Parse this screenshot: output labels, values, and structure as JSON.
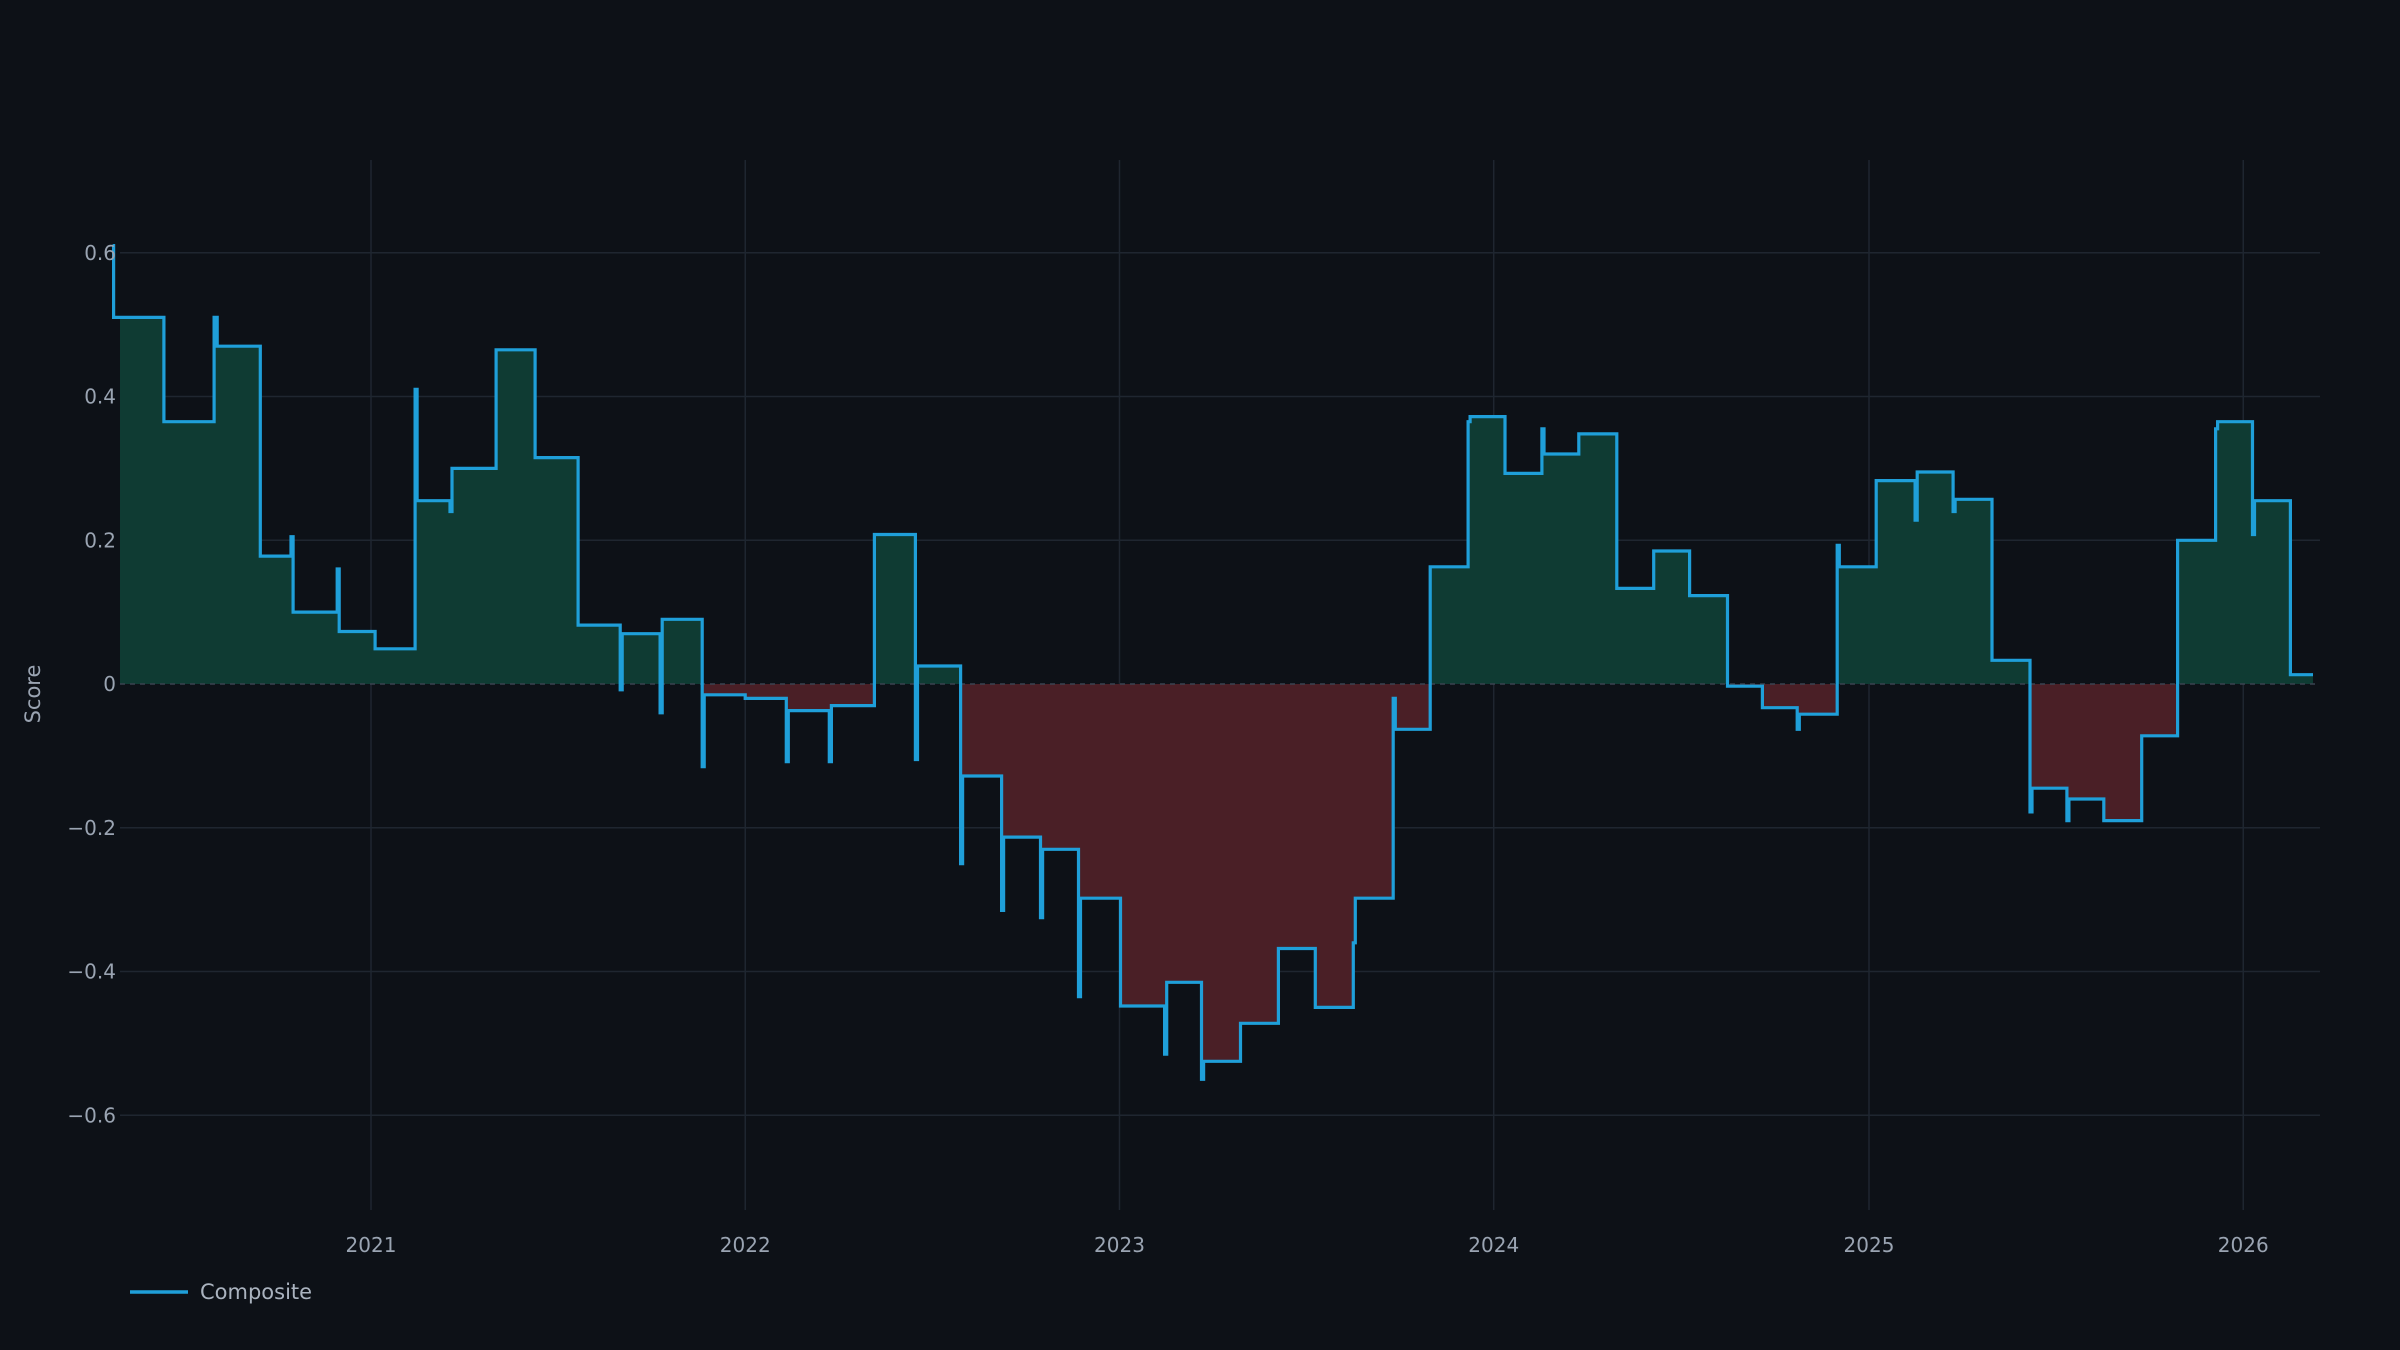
{
  "chart_data": {
    "type": "line",
    "ylabel": "Score",
    "xlabel": "",
    "ylim": [
      -0.73,
      0.73
    ],
    "xlim": [
      "2020-04-24",
      "2026-03-10"
    ],
    "x_ticks": [
      {
        "date": "2021-01-01",
        "label": "2021"
      },
      {
        "date": "2022-01-01",
        "label": "2022"
      },
      {
        "date": "2023-01-01",
        "label": "2023"
      },
      {
        "date": "2024-01-01",
        "label": "2024"
      },
      {
        "date": "2025-01-01",
        "label": "2025"
      },
      {
        "date": "2026-01-01",
        "label": "2026"
      }
    ],
    "y_ticks": [
      {
        "value": 0.6,
        "label": "0.6"
      },
      {
        "value": 0.4,
        "label": "0.4"
      },
      {
        "value": 0.2,
        "label": "0.2"
      },
      {
        "value": 0,
        "label": "0"
      },
      {
        "value": -0.2,
        "label": "−0.2"
      },
      {
        "value": -0.4,
        "label": "−0.4"
      },
      {
        "value": -0.6,
        "label": "−0.6"
      }
    ],
    "grid": true,
    "zero_line": "dashed",
    "fill": {
      "positive": "#0f3b33",
      "negative": "#4a1f26"
    },
    "legend": {
      "position": "bottom-left"
    },
    "series": [
      {
        "name": "Composite",
        "color": "#1f9fd9",
        "step": true,
        "points": [
          [
            "2020-04-24",
            0.61
          ],
          [
            "2020-04-25",
            0.51
          ],
          [
            "2020-06-12",
            0.51
          ],
          [
            "2020-06-13",
            0.365
          ],
          [
            "2020-07-30",
            0.365
          ],
          [
            "2020-08-01",
            0.51
          ],
          [
            "2020-08-04",
            0.47
          ],
          [
            "2020-09-14",
            0.47
          ],
          [
            "2020-09-15",
            0.178
          ],
          [
            "2020-10-13",
            0.178
          ],
          [
            "2020-10-15",
            0.205
          ],
          [
            "2020-10-17",
            0.1
          ],
          [
            "2020-11-27",
            0.1
          ],
          [
            "2020-11-29",
            0.16
          ],
          [
            "2020-12-01",
            0.073
          ],
          [
            "2020-12-20",
            0.073
          ],
          [
            "2020-12-21",
            0.073
          ],
          [
            "2021-01-04",
            0.073
          ],
          [
            "2021-01-05",
            0.049
          ],
          [
            "2021-02-11",
            0.049
          ],
          [
            "2021-02-13",
            0.41
          ],
          [
            "2021-02-15",
            0.255
          ],
          [
            "2021-03-17",
            0.255
          ],
          [
            "2021-03-19",
            0.24
          ],
          [
            "2021-03-21",
            0.3
          ],
          [
            "2021-04-30",
            0.3
          ],
          [
            "2021-05-03",
            0.465
          ],
          [
            "2021-06-08",
            0.465
          ],
          [
            "2021-06-10",
            0.315
          ],
          [
            "2021-07-20",
            0.315
          ],
          [
            "2021-07-22",
            0.082
          ],
          [
            "2021-08-30",
            0.082
          ],
          [
            "2021-09-01",
            -0.008
          ],
          [
            "2021-09-03",
            0.07
          ],
          [
            "2021-10-08",
            0.07
          ],
          [
            "2021-10-10",
            -0.04
          ],
          [
            "2021-10-12",
            0.09
          ],
          [
            "2021-11-19",
            0.09
          ],
          [
            "2021-11-20",
            -0.115
          ],
          [
            "2021-11-22",
            -0.015
          ],
          [
            "2021-12-30",
            -0.015
          ],
          [
            "2022-01-01",
            -0.02
          ],
          [
            "2022-02-08",
            -0.02
          ],
          [
            "2022-02-10",
            -0.108
          ],
          [
            "2022-02-12",
            -0.037
          ],
          [
            "2022-03-22",
            -0.037
          ],
          [
            "2022-03-24",
            -0.108
          ],
          [
            "2022-03-26",
            -0.03
          ],
          [
            "2022-05-05",
            -0.03
          ],
          [
            "2022-05-07",
            0.208
          ],
          [
            "2022-06-14",
            0.208
          ],
          [
            "2022-06-16",
            -0.105
          ],
          [
            "2022-06-18",
            0.025
          ],
          [
            "2022-07-28",
            0.025
          ],
          [
            "2022-07-30",
            -0.25
          ],
          [
            "2022-08-01",
            -0.128
          ],
          [
            "2022-09-06",
            -0.128
          ],
          [
            "2022-09-08",
            -0.315
          ],
          [
            "2022-09-10",
            -0.213
          ],
          [
            "2022-10-14",
            -0.213
          ],
          [
            "2022-10-16",
            -0.325
          ],
          [
            "2022-10-18",
            -0.23
          ],
          [
            "2022-11-20",
            -0.23
          ],
          [
            "2022-11-22",
            -0.435
          ],
          [
            "2022-11-24",
            -0.298
          ],
          [
            "2022-12-31",
            -0.298
          ],
          [
            "2023-01-02",
            -0.448
          ],
          [
            "2023-02-12",
            -0.448
          ],
          [
            "2023-02-14",
            -0.515
          ],
          [
            "2023-02-16",
            -0.415
          ],
          [
            "2023-03-20",
            -0.415
          ],
          [
            "2023-03-22",
            -0.55
          ],
          [
            "2023-03-24",
            -0.525
          ],
          [
            "2023-04-27",
            -0.525
          ],
          [
            "2023-04-29",
            -0.472
          ],
          [
            "2023-06-03",
            -0.472
          ],
          [
            "2023-06-05",
            -0.368
          ],
          [
            "2023-07-09",
            -0.368
          ],
          [
            "2023-07-11",
            -0.45
          ],
          [
            "2023-08-15",
            -0.45
          ],
          [
            "2023-08-17",
            -0.36
          ],
          [
            "2023-08-19",
            -0.298
          ],
          [
            "2023-09-23",
            -0.298
          ],
          [
            "2023-09-25",
            -0.02
          ],
          [
            "2023-09-27",
            -0.063
          ],
          [
            "2023-10-29",
            -0.063
          ],
          [
            "2023-10-31",
            0.163
          ],
          [
            "2023-12-05",
            0.163
          ],
          [
            "2023-12-07",
            0.365
          ],
          [
            "2023-12-09",
            0.372
          ],
          [
            "2024-01-10",
            0.372
          ],
          [
            "2024-01-12",
            0.293
          ],
          [
            "2024-02-15",
            0.293
          ],
          [
            "2024-02-17",
            0.355
          ],
          [
            "2024-02-19",
            0.32
          ],
          [
            "2024-03-22",
            0.32
          ],
          [
            "2024-03-24",
            0.348
          ],
          [
            "2024-04-28",
            0.348
          ],
          [
            "2024-04-30",
            0.133
          ],
          [
            "2024-06-03",
            0.133
          ],
          [
            "2024-06-05",
            0.185
          ],
          [
            "2024-07-08",
            0.185
          ],
          [
            "2024-07-10",
            0.123
          ],
          [
            "2024-08-14",
            0.123
          ],
          [
            "2024-08-16",
            -0.003
          ],
          [
            "2024-09-17",
            -0.003
          ],
          [
            "2024-09-19",
            -0.033
          ],
          [
            "2024-10-22",
            -0.033
          ],
          [
            "2024-10-23",
            -0.063
          ],
          [
            "2024-10-25",
            -0.042
          ],
          [
            "2024-11-30",
            -0.042
          ],
          [
            "2024-12-01",
            0.193
          ],
          [
            "2024-12-03",
            0.163
          ],
          [
            "2025-01-06",
            0.163
          ],
          [
            "2025-01-08",
            0.283
          ],
          [
            "2025-02-13",
            0.283
          ],
          [
            "2025-02-15",
            0.228
          ],
          [
            "2025-02-17",
            0.295
          ],
          [
            "2025-03-22",
            0.295
          ],
          [
            "2025-03-24",
            0.24
          ],
          [
            "2025-03-26",
            0.257
          ],
          [
            "2025-04-29",
            0.257
          ],
          [
            "2025-05-01",
            0.033
          ],
          [
            "2025-06-05",
            0.033
          ],
          [
            "2025-06-07",
            -0.178
          ],
          [
            "2025-06-09",
            -0.145
          ],
          [
            "2025-07-11",
            -0.145
          ],
          [
            "2025-07-13",
            -0.19
          ],
          [
            "2025-07-15",
            -0.16
          ],
          [
            "2025-08-16",
            -0.16
          ],
          [
            "2025-08-18",
            -0.19
          ],
          [
            "2025-09-22",
            -0.19
          ],
          [
            "2025-09-24",
            -0.072
          ],
          [
            "2025-10-27",
            -0.072
          ],
          [
            "2025-10-29",
            0.2
          ],
          [
            "2025-12-03",
            0.2
          ],
          [
            "2025-12-05",
            0.355
          ],
          [
            "2025-12-07",
            0.365
          ],
          [
            "2026-01-09",
            0.365
          ],
          [
            "2026-01-10",
            0.208
          ],
          [
            "2026-01-12",
            0.255
          ],
          [
            "2026-02-14",
            0.255
          ],
          [
            "2026-02-16",
            0.013
          ],
          [
            "2026-03-10",
            0.013
          ]
        ]
      }
    ]
  }
}
